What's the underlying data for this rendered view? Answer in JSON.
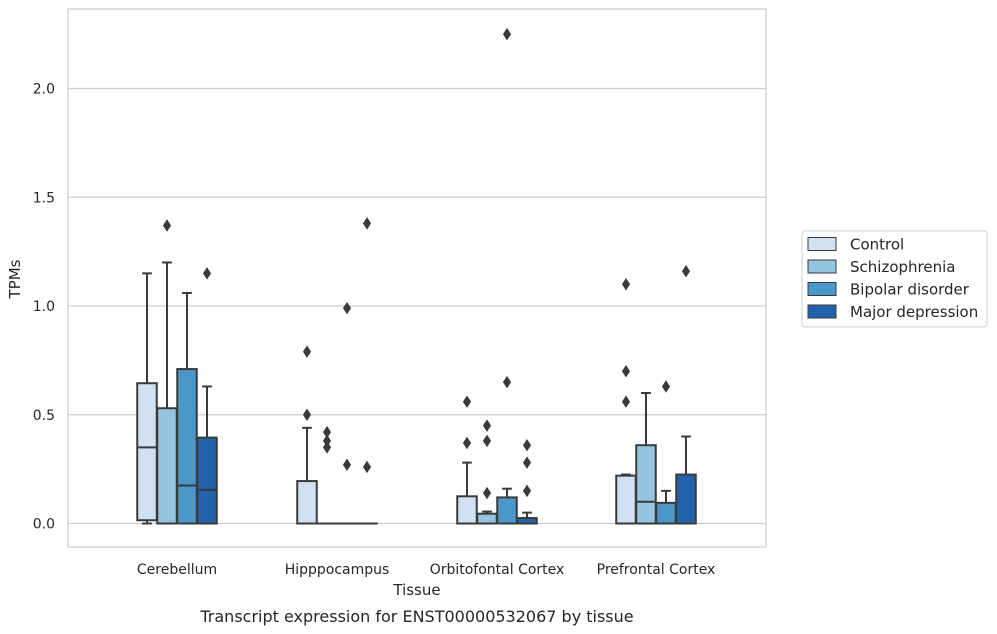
{
  "chart_data": {
    "type": "box",
    "xlabel": "Tissue",
    "ylabel": "TPMs",
    "caption": "Transcript expression for ENST00000532067 by tissue",
    "ylim": [
      -0.11,
      2.38
    ],
    "yticks": [
      "0.0",
      "0.5",
      "1.0",
      "1.5",
      "2.0"
    ],
    "y_tick_values": [
      0,
      0.5,
      1.0,
      1.5,
      2.0
    ],
    "grid": "horizontal",
    "legend_position": "right",
    "categories": [
      "Cerebellum",
      "Hipppocampus",
      "Orbitofontal Cortex",
      "Prefrontal Cortex"
    ],
    "series": [
      {
        "name": "Control",
        "color": "#d0e1f2",
        "boxes": [
          {
            "q1": 0.015,
            "median": 0.35,
            "q3": 0.645,
            "whisker_low": 0.0,
            "whisker_high": 1.15,
            "outliers": []
          },
          {
            "q1": 0.0,
            "median": 0.0,
            "q3": 0.195,
            "whisker_low": 0.0,
            "whisker_high": 0.44,
            "outliers": [
              0.5,
              0.79
            ]
          },
          {
            "q1": 0.0,
            "median": 0.0,
            "q3": 0.125,
            "whisker_low": 0.0,
            "whisker_high": 0.28,
            "outliers": [
              0.37,
              0.56
            ]
          },
          {
            "q1": 0.0,
            "median": 0.0,
            "q3": 0.22,
            "whisker_low": 0.0,
            "whisker_high": 0.225,
            "outliers": [
              0.56,
              0.7,
              1.1
            ]
          }
        ]
      },
      {
        "name": "Schizophrenia",
        "color": "#94c4df",
        "boxes": [
          {
            "q1": 0.0,
            "median": 0.0,
            "q3": 0.53,
            "whisker_low": 0.0,
            "whisker_high": 1.2,
            "outliers": [
              1.37
            ]
          },
          {
            "q1": 0.0,
            "median": 0.0,
            "q3": 0.0,
            "whisker_low": 0.0,
            "whisker_high": 0.0,
            "outliers": [
              0.35,
              0.38,
              0.42
            ]
          },
          {
            "q1": 0.0,
            "median": 0.0,
            "q3": 0.045,
            "whisker_low": 0.0,
            "whisker_high": 0.055,
            "outliers": [
              0.14,
              0.38,
              0.45
            ]
          },
          {
            "q1": 0.0,
            "median": 0.1,
            "q3": 0.36,
            "whisker_low": 0.0,
            "whisker_high": 0.6,
            "outliers": []
          }
        ]
      },
      {
        "name": "Bipolar disorder",
        "color": "#4a98c9",
        "boxes": [
          {
            "q1": 0.0,
            "median": 0.175,
            "q3": 0.71,
            "whisker_low": 0.0,
            "whisker_high": 1.06,
            "outliers": []
          },
          {
            "q1": 0.0,
            "median": 0.0,
            "q3": 0.0,
            "whisker_low": 0.0,
            "whisker_high": 0.0,
            "outliers": [
              0.27,
              0.99
            ]
          },
          {
            "q1": 0.0,
            "median": 0.0,
            "q3": 0.12,
            "whisker_low": 0.0,
            "whisker_high": 0.16,
            "outliers": [
              0.65,
              2.25
            ]
          },
          {
            "q1": 0.0,
            "median": 0.0,
            "q3": 0.095,
            "whisker_low": 0.0,
            "whisker_high": 0.15,
            "outliers": [
              0.63
            ]
          }
        ]
      },
      {
        "name": "Major depression",
        "color": "#2163aa",
        "boxes": [
          {
            "q1": 0.0,
            "median": 0.155,
            "q3": 0.395,
            "whisker_low": 0.0,
            "whisker_high": 0.63,
            "outliers": [
              1.15
            ]
          },
          {
            "q1": 0.0,
            "median": 0.0,
            "q3": 0.0,
            "whisker_low": 0.0,
            "whisker_high": 0.0,
            "outliers": [
              0.26,
              1.38
            ]
          },
          {
            "q1": 0.0,
            "median": 0.0,
            "q3": 0.025,
            "whisker_low": 0.0,
            "whisker_high": 0.05,
            "outliers": [
              0.15,
              0.28,
              0.36
            ]
          },
          {
            "q1": 0.0,
            "median": 0.0,
            "q3": 0.225,
            "whisker_low": 0.0,
            "whisker_high": 0.4,
            "outliers": [
              1.16
            ]
          }
        ]
      }
    ]
  }
}
